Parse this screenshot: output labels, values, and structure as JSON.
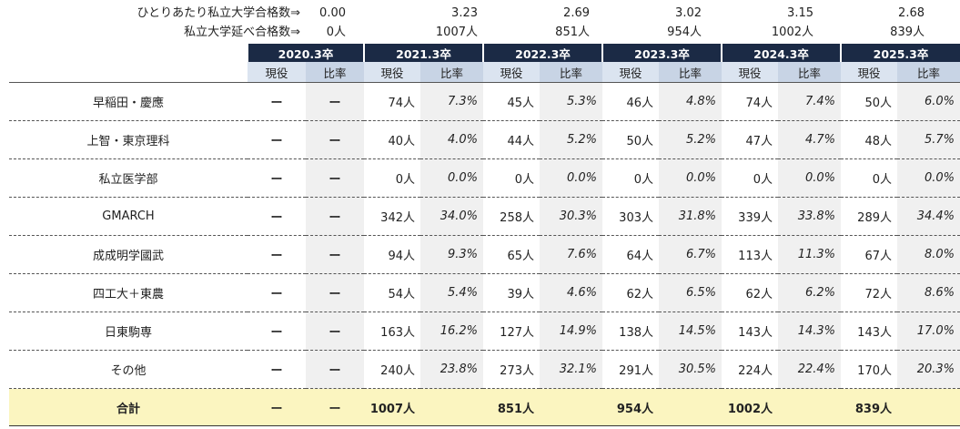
{
  "summary": {
    "rate_label": "ひとりあたり私立大学合格数⇒",
    "rate_values": [
      "0.00",
      "3.23",
      "2.69",
      "3.02",
      "3.15",
      "2.68"
    ],
    "count_label": "私立大学延べ合格数⇒",
    "count_values": [
      "0人",
      "1007人",
      "851人",
      "954人",
      "1002人",
      "839人"
    ]
  },
  "header": {
    "years": [
      "2020.3卒",
      "2021.3卒",
      "2022.3卒",
      "2023.3卒",
      "2024.3卒",
      "2025.3卒"
    ],
    "sub_current": "現役",
    "sub_rate": "比率"
  },
  "rows": [
    {
      "name": "早稲田・慶應",
      "c0": "ー",
      "r0": "ー",
      "c1": "74人",
      "r1": "7.3%",
      "c2": "45人",
      "r2": "5.3%",
      "c3": "46人",
      "r3": "4.8%",
      "c4": "74人",
      "r4": "7.4%",
      "c5": "50人",
      "r5": "6.0%"
    },
    {
      "name": "上智・東京理科",
      "c0": "ー",
      "r0": "ー",
      "c1": "40人",
      "r1": "4.0%",
      "c2": "44人",
      "r2": "5.2%",
      "c3": "50人",
      "r3": "5.2%",
      "c4": "47人",
      "r4": "4.7%",
      "c5": "48人",
      "r5": "5.7%"
    },
    {
      "name": "私立医学部",
      "c0": "ー",
      "r0": "ー",
      "c1": "0人",
      "r1": "0.0%",
      "c2": "0人",
      "r2": "0.0%",
      "c3": "0人",
      "r3": "0.0%",
      "c4": "0人",
      "r4": "0.0%",
      "c5": "0人",
      "r5": "0.0%"
    },
    {
      "name": "GMARCH",
      "c0": "ー",
      "r0": "ー",
      "c1": "342人",
      "r1": "34.0%",
      "c2": "258人",
      "r2": "30.3%",
      "c3": "303人",
      "r3": "31.8%",
      "c4": "339人",
      "r4": "33.8%",
      "c5": "289人",
      "r5": "34.4%"
    },
    {
      "name": "成成明学國武",
      "c0": "ー",
      "r0": "ー",
      "c1": "94人",
      "r1": "9.3%",
      "c2": "65人",
      "r2": "7.6%",
      "c3": "64人",
      "r3": "6.7%",
      "c4": "113人",
      "r4": "11.3%",
      "c5": "67人",
      "r5": "8.0%"
    },
    {
      "name": "四工大＋東農",
      "c0": "ー",
      "r0": "ー",
      "c1": "54人",
      "r1": "5.4%",
      "c2": "39人",
      "r2": "4.6%",
      "c3": "62人",
      "r3": "6.5%",
      "c4": "62人",
      "r4": "6.2%",
      "c5": "72人",
      "r5": "8.6%"
    },
    {
      "name": "日東駒専",
      "c0": "ー",
      "r0": "ー",
      "c1": "163人",
      "r1": "16.2%",
      "c2": "127人",
      "r2": "14.9%",
      "c3": "138人",
      "r3": "14.5%",
      "c4": "143人",
      "r4": "14.3%",
      "c5": "143人",
      "r5": "17.0%"
    },
    {
      "name": "その他",
      "c0": "ー",
      "r0": "ー",
      "c1": "240人",
      "r1": "23.8%",
      "c2": "273人",
      "r2": "32.1%",
      "c3": "291人",
      "r3": "30.5%",
      "c4": "224人",
      "r4": "22.4%",
      "c5": "170人",
      "r5": "20.3%"
    }
  ],
  "total": {
    "name": "合計",
    "c0": "ー",
    "r0": "ー",
    "c1": "1007人",
    "c2": "851人",
    "c3": "954人",
    "c4": "1002人",
    "c5": "839人"
  }
}
